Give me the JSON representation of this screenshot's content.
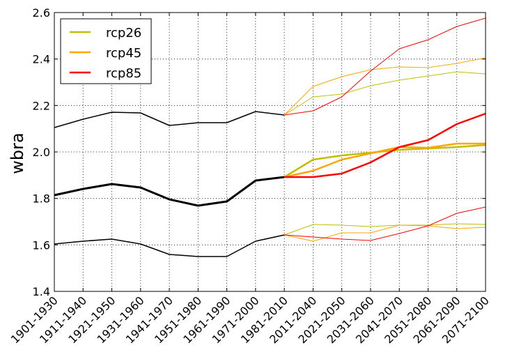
{
  "chart_data": {
    "type": "line",
    "title": "",
    "xlabel": "",
    "ylabel": "wbra",
    "ylim": [
      1.4,
      2.6
    ],
    "yticks": [
      "1.4",
      "1.6",
      "1.8",
      "2.0",
      "2.2",
      "2.4",
      "2.6"
    ],
    "grid": true,
    "legend_placement": "top-left",
    "categories": [
      "1901-1930",
      "1911-1940",
      "1921-1950",
      "1931-1960",
      "1941-1970",
      "1951-1980",
      "1961-1990",
      "1971-2000",
      "1981-2010",
      "2011-2040",
      "2021-2050",
      "2031-2060",
      "2041-2070",
      "2051-2080",
      "2061-2090",
      "2071-2100"
    ],
    "historical": {
      "color": "#000000",
      "start_index": 0,
      "upper": [
        2.105,
        2.141,
        2.171,
        2.168,
        2.114,
        2.126,
        2.126,
        2.174,
        2.159
      ],
      "mean": [
        1.814,
        1.841,
        1.862,
        1.847,
        1.796,
        1.769,
        1.787,
        1.877,
        1.892
      ],
      "lower": [
        1.604,
        1.616,
        1.625,
        1.604,
        1.559,
        1.55,
        1.55,
        1.616,
        1.643
      ]
    },
    "series": [
      {
        "name": "rcp26",
        "color": "#bfbf00",
        "start_index": 8,
        "upper": [
          2.159,
          2.237,
          2.249,
          2.285,
          2.309,
          2.327,
          2.345,
          2.336
        ],
        "mean": [
          1.892,
          1.967,
          1.985,
          1.997,
          2.009,
          2.015,
          2.021,
          2.03
        ],
        "lower": [
          1.643,
          1.688,
          1.685,
          1.679,
          1.685,
          1.685,
          1.691,
          1.688
        ]
      },
      {
        "name": "rcp45",
        "color": "#ffa500",
        "start_index": 8,
        "upper": [
          2.159,
          2.282,
          2.324,
          2.354,
          2.366,
          2.363,
          2.381,
          2.405
        ],
        "mean": [
          1.892,
          1.919,
          1.967,
          1.994,
          2.021,
          2.018,
          2.036,
          2.036
        ],
        "lower": [
          1.643,
          1.616,
          1.652,
          1.652,
          1.685,
          1.682,
          1.67,
          1.676
        ]
      },
      {
        "name": "rcp85",
        "color": "#ff0000",
        "start_index": 8,
        "upper": [
          2.159,
          2.177,
          2.237,
          2.348,
          2.444,
          2.483,
          2.54,
          2.576
        ],
        "mean": [
          1.892,
          1.892,
          1.907,
          1.955,
          2.021,
          2.051,
          2.12,
          2.165
        ],
        "lower": [
          1.643,
          1.634,
          1.625,
          1.619,
          1.649,
          1.682,
          1.736,
          1.763
        ]
      }
    ]
  }
}
